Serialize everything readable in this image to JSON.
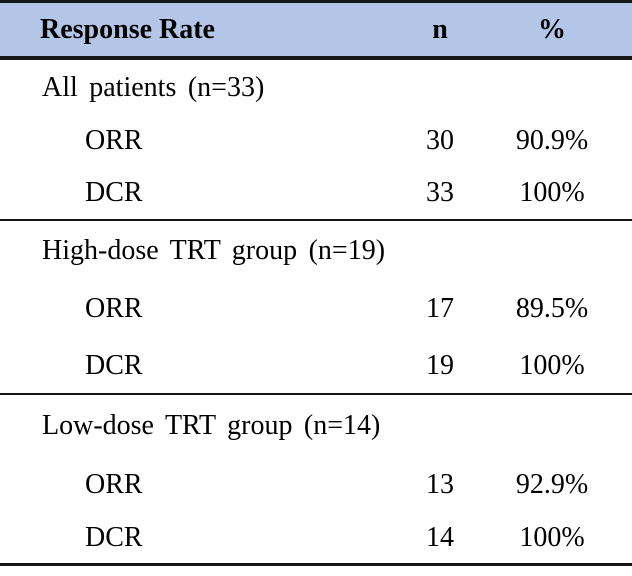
{
  "table": {
    "header": {
      "col1": "Response Rate",
      "col2": "n",
      "col3": "%"
    },
    "sections": [
      {
        "title": "All patients (n=33)",
        "rows": [
          {
            "label": "ORR",
            "n": "30",
            "pct": "90.9%"
          },
          {
            "label": "DCR",
            "n": "33",
            "pct": "100%"
          }
        ]
      },
      {
        "title": "High-dose TRT group (n=19)",
        "rows": [
          {
            "label": "ORR",
            "n": "17",
            "pct": "89.5%"
          },
          {
            "label": "DCR",
            "n": "19",
            "pct": "100%"
          }
        ]
      },
      {
        "title": "Low-dose TRT group (n=14)",
        "rows": [
          {
            "label": "ORR",
            "n": "13",
            "pct": "92.9%"
          },
          {
            "label": "DCR",
            "n": "14",
            "pct": "100%"
          }
        ]
      }
    ],
    "colors": {
      "header_bg": "#b4c6e7",
      "rule": "#161616",
      "text": "#000000"
    }
  }
}
